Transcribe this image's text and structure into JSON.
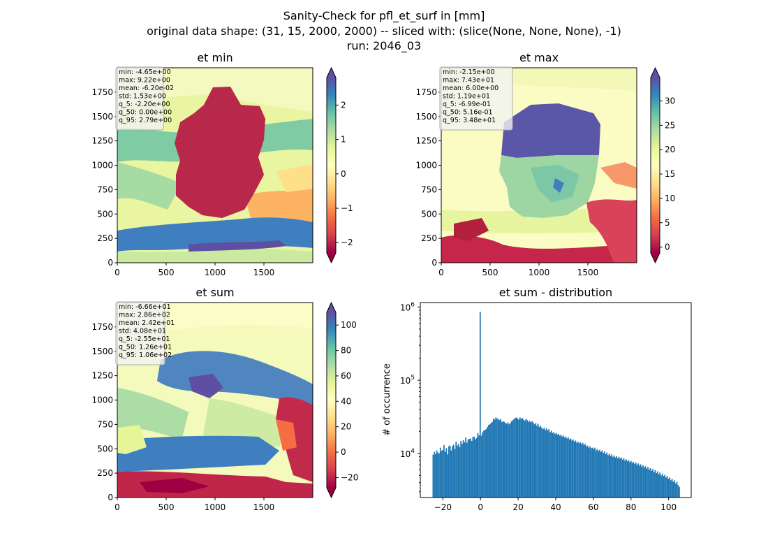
{
  "figure": {
    "title_lines": [
      "Sanity-Check for pfl_et_surf in [mm]",
      "original data shape: (31, 15, 2000, 2000) -- sliced with: (slice(None, None, None), -1)",
      "run: 2046_03"
    ]
  },
  "chart_data": [
    {
      "type": "heatmap",
      "title": "et min",
      "xlim": [
        0,
        2000
      ],
      "ylim": [
        0,
        2000
      ],
      "x_ticks": [
        "0",
        "500",
        "1000",
        "1500"
      ],
      "y_ticks": [
        "0",
        "250",
        "500",
        "750",
        "1000",
        "1250",
        "1500",
        "1750"
      ],
      "colormap": "Spectral",
      "colorbar": {
        "range": [
          -2.3,
          2.8
        ],
        "extend": "both",
        "ticks": [
          "−2",
          "−1",
          "0",
          "1",
          "2"
        ],
        "tick_values": [
          -2,
          -1,
          0,
          1,
          2
        ]
      },
      "stats": [
        "min: -4.65e+00",
        "max: 9.22e+00",
        "mean: -6.20e-02",
        "std: 1.53e+00",
        "q_5: -2.20e+00",
        "q_50: 0.00e+00",
        "q_95: 2.79e+00"
      ]
    },
    {
      "type": "heatmap",
      "title": "et max",
      "xlim": [
        0,
        2000
      ],
      "ylim": [
        0,
        2000
      ],
      "x_ticks": [
        "0",
        "500",
        "1000",
        "1500"
      ],
      "y_ticks": [
        "0",
        "250",
        "500",
        "750",
        "1000",
        "1250",
        "1500",
        "1750"
      ],
      "colormap": "Spectral",
      "colorbar": {
        "range": [
          -1.2,
          34.8
        ],
        "extend": "both",
        "ticks": [
          "0",
          "5",
          "10",
          "15",
          "20",
          "25",
          "30"
        ],
        "tick_values": [
          0,
          5,
          10,
          15,
          20,
          25,
          30
        ]
      },
      "stats": [
        "min: -2.15e+00",
        "max: 7.43e+01",
        "mean: 6.00e+00",
        "std: 1.19e+01",
        "q_5: -6.99e-01",
        "q_50: 5.16e-01",
        "q_95: 3.48e+01"
      ]
    },
    {
      "type": "heatmap",
      "title": "et sum",
      "xlim": [
        0,
        2000
      ],
      "ylim": [
        0,
        2000
      ],
      "x_ticks": [
        "0",
        "500",
        "1000",
        "1500"
      ],
      "y_ticks": [
        "0",
        "250",
        "500",
        "750",
        "1000",
        "1250",
        "1500",
        "1750"
      ],
      "colormap": "Spectral",
      "colorbar": {
        "range": [
          -28,
          110
        ],
        "extend": "both",
        "ticks": [
          "−20",
          "0",
          "20",
          "40",
          "60",
          "80",
          "100"
        ],
        "tick_values": [
          -20,
          0,
          20,
          40,
          60,
          80,
          100
        ]
      },
      "stats": [
        "min: -6.66e+01",
        "max: 2.86e+02",
        "mean: 2.42e+01",
        "std: 4.08e+01",
        "q_5: -2.55e+01",
        "q_50: 1.26e+01",
        "q_95: 1.06e+02"
      ]
    },
    {
      "type": "bar",
      "title": "et sum - distribution",
      "ylabel": "# of occurrence",
      "y_scale": "log",
      "xlim": [
        -32,
        112
      ],
      "ylim": [
        2500,
        1150000
      ],
      "x_ticks": [
        "−20",
        "0",
        "20",
        "40",
        "60",
        "80",
        "100"
      ],
      "x_tick_values": [
        -20,
        0,
        20,
        40,
        60,
        80,
        100
      ],
      "y_ticks": [
        {
          "base": "10",
          "exp": "4",
          "value": 10000
        },
        {
          "base": "10",
          "exp": "5",
          "value": 100000
        },
        {
          "base": "10",
          "exp": "6",
          "value": 1000000
        }
      ],
      "bin_range": [
        -25.5,
        106
      ],
      "color": "#1f77b4",
      "counts": [
        9600,
        10500,
        9800,
        11000,
        10300,
        10000,
        12000,
        10800,
        11200,
        13000,
        10500,
        11800,
        9700,
        12500,
        12800,
        11000,
        12600,
        13200,
        11500,
        14500,
        12800,
        13500,
        12200,
        14800,
        13500,
        15200,
        14200,
        16500,
        14000,
        15500,
        15800,
        16000,
        14800,
        16800,
        17000,
        15500,
        16200,
        19000,
        17600,
        860000,
        17500,
        19500,
        20500,
        21000,
        21500,
        23000,
        24500,
        25000,
        26000,
        27000,
        30000,
        29000,
        31000,
        30000,
        29500,
        28500,
        29500,
        27000,
        27500,
        27000,
        26000,
        25500,
        26500,
        25000,
        26000,
        27500,
        28500,
        29500,
        30500,
        31000,
        30000,
        29000,
        31000,
        29500,
        30500,
        29000,
        28000,
        29500,
        28500,
        27000,
        28000,
        26500,
        27500,
        26500,
        25000,
        26000,
        24000,
        25500,
        23000,
        24000,
        22500,
        21500,
        22500,
        21000,
        22000,
        20500,
        21500,
        19500,
        20500,
        19000,
        19500,
        18500,
        19000,
        18000,
        18500,
        17500,
        18000,
        17000,
        17500,
        16500,
        17000,
        16000,
        16500,
        15500,
        16000,
        15000,
        15500,
        14500,
        15000,
        14000,
        14500,
        13800,
        14200,
        13500,
        14000,
        13000,
        13500,
        12500,
        12800,
        12000,
        12500,
        11800,
        12000,
        11500,
        12000,
        11000,
        11500,
        10800,
        11200,
        10500,
        11000,
        10200,
        10700,
        9800,
        10300,
        9500,
        10000,
        9200,
        9700,
        9000,
        9400,
        8800,
        9200,
        8600,
        9000,
        8500,
        8800,
        8200,
        8600,
        8000,
        8300,
        7800,
        8100,
        7600,
        7900,
        7400,
        7700,
        7200,
        7500,
        7000,
        7300,
        6800,
        7100,
        6600,
        6900,
        6400,
        6700,
        6200,
        6500,
        6000,
        6300,
        5800,
        6100,
        5600,
        5900,
        5400,
        5700,
        5200,
        5500,
        5000,
        5300,
        4900,
        5100,
        4700,
        4900,
        4500,
        4700,
        4300,
        4500,
        4100,
        4300,
        3900,
        4100,
        3700,
        3500
      ]
    }
  ]
}
